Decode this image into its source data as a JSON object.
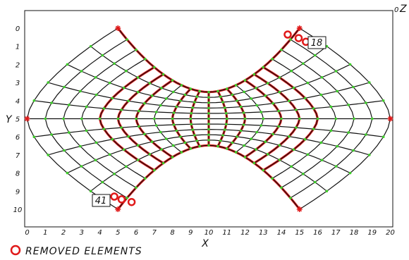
{
  "axes": {
    "x_title": "X",
    "y_title": "Y",
    "z_title": "Z",
    "z_zero": "0",
    "x_ticks": [
      "0",
      "1",
      "2",
      "3",
      "4",
      "5",
      "6",
      "7",
      "8",
      "9",
      "10",
      "11",
      "12",
      "13",
      "14",
      "15",
      "16",
      "17",
      "18",
      "19",
      "20"
    ],
    "y_ticks": [
      "0",
      "1",
      "2",
      "3",
      "4",
      "5",
      "6",
      "7",
      "8",
      "9",
      "10"
    ]
  },
  "callouts": {
    "top_right": "18",
    "bottom_left": "41"
  },
  "legend": {
    "label": "REMOVED ELEMENTS"
  },
  "colors": {
    "mesh": "#111111",
    "removed": "#e01a1a",
    "node": "#3ecf2a",
    "support": "#e01a1a"
  },
  "mesh": {
    "corner_supports": [
      [
        5,
        0
      ],
      [
        15,
        0
      ],
      [
        5,
        10
      ],
      [
        15,
        10
      ]
    ],
    "side_supports": [
      [
        0,
        5
      ],
      [
        20,
        5
      ]
    ],
    "removed_markers": [
      [
        14.35,
        0.35
      ],
      [
        14.95,
        0.55
      ],
      [
        15.35,
        0.75
      ],
      [
        4.8,
        9.3
      ],
      [
        5.2,
        9.45
      ],
      [
        5.75,
        9.6
      ]
    ]
  }
}
